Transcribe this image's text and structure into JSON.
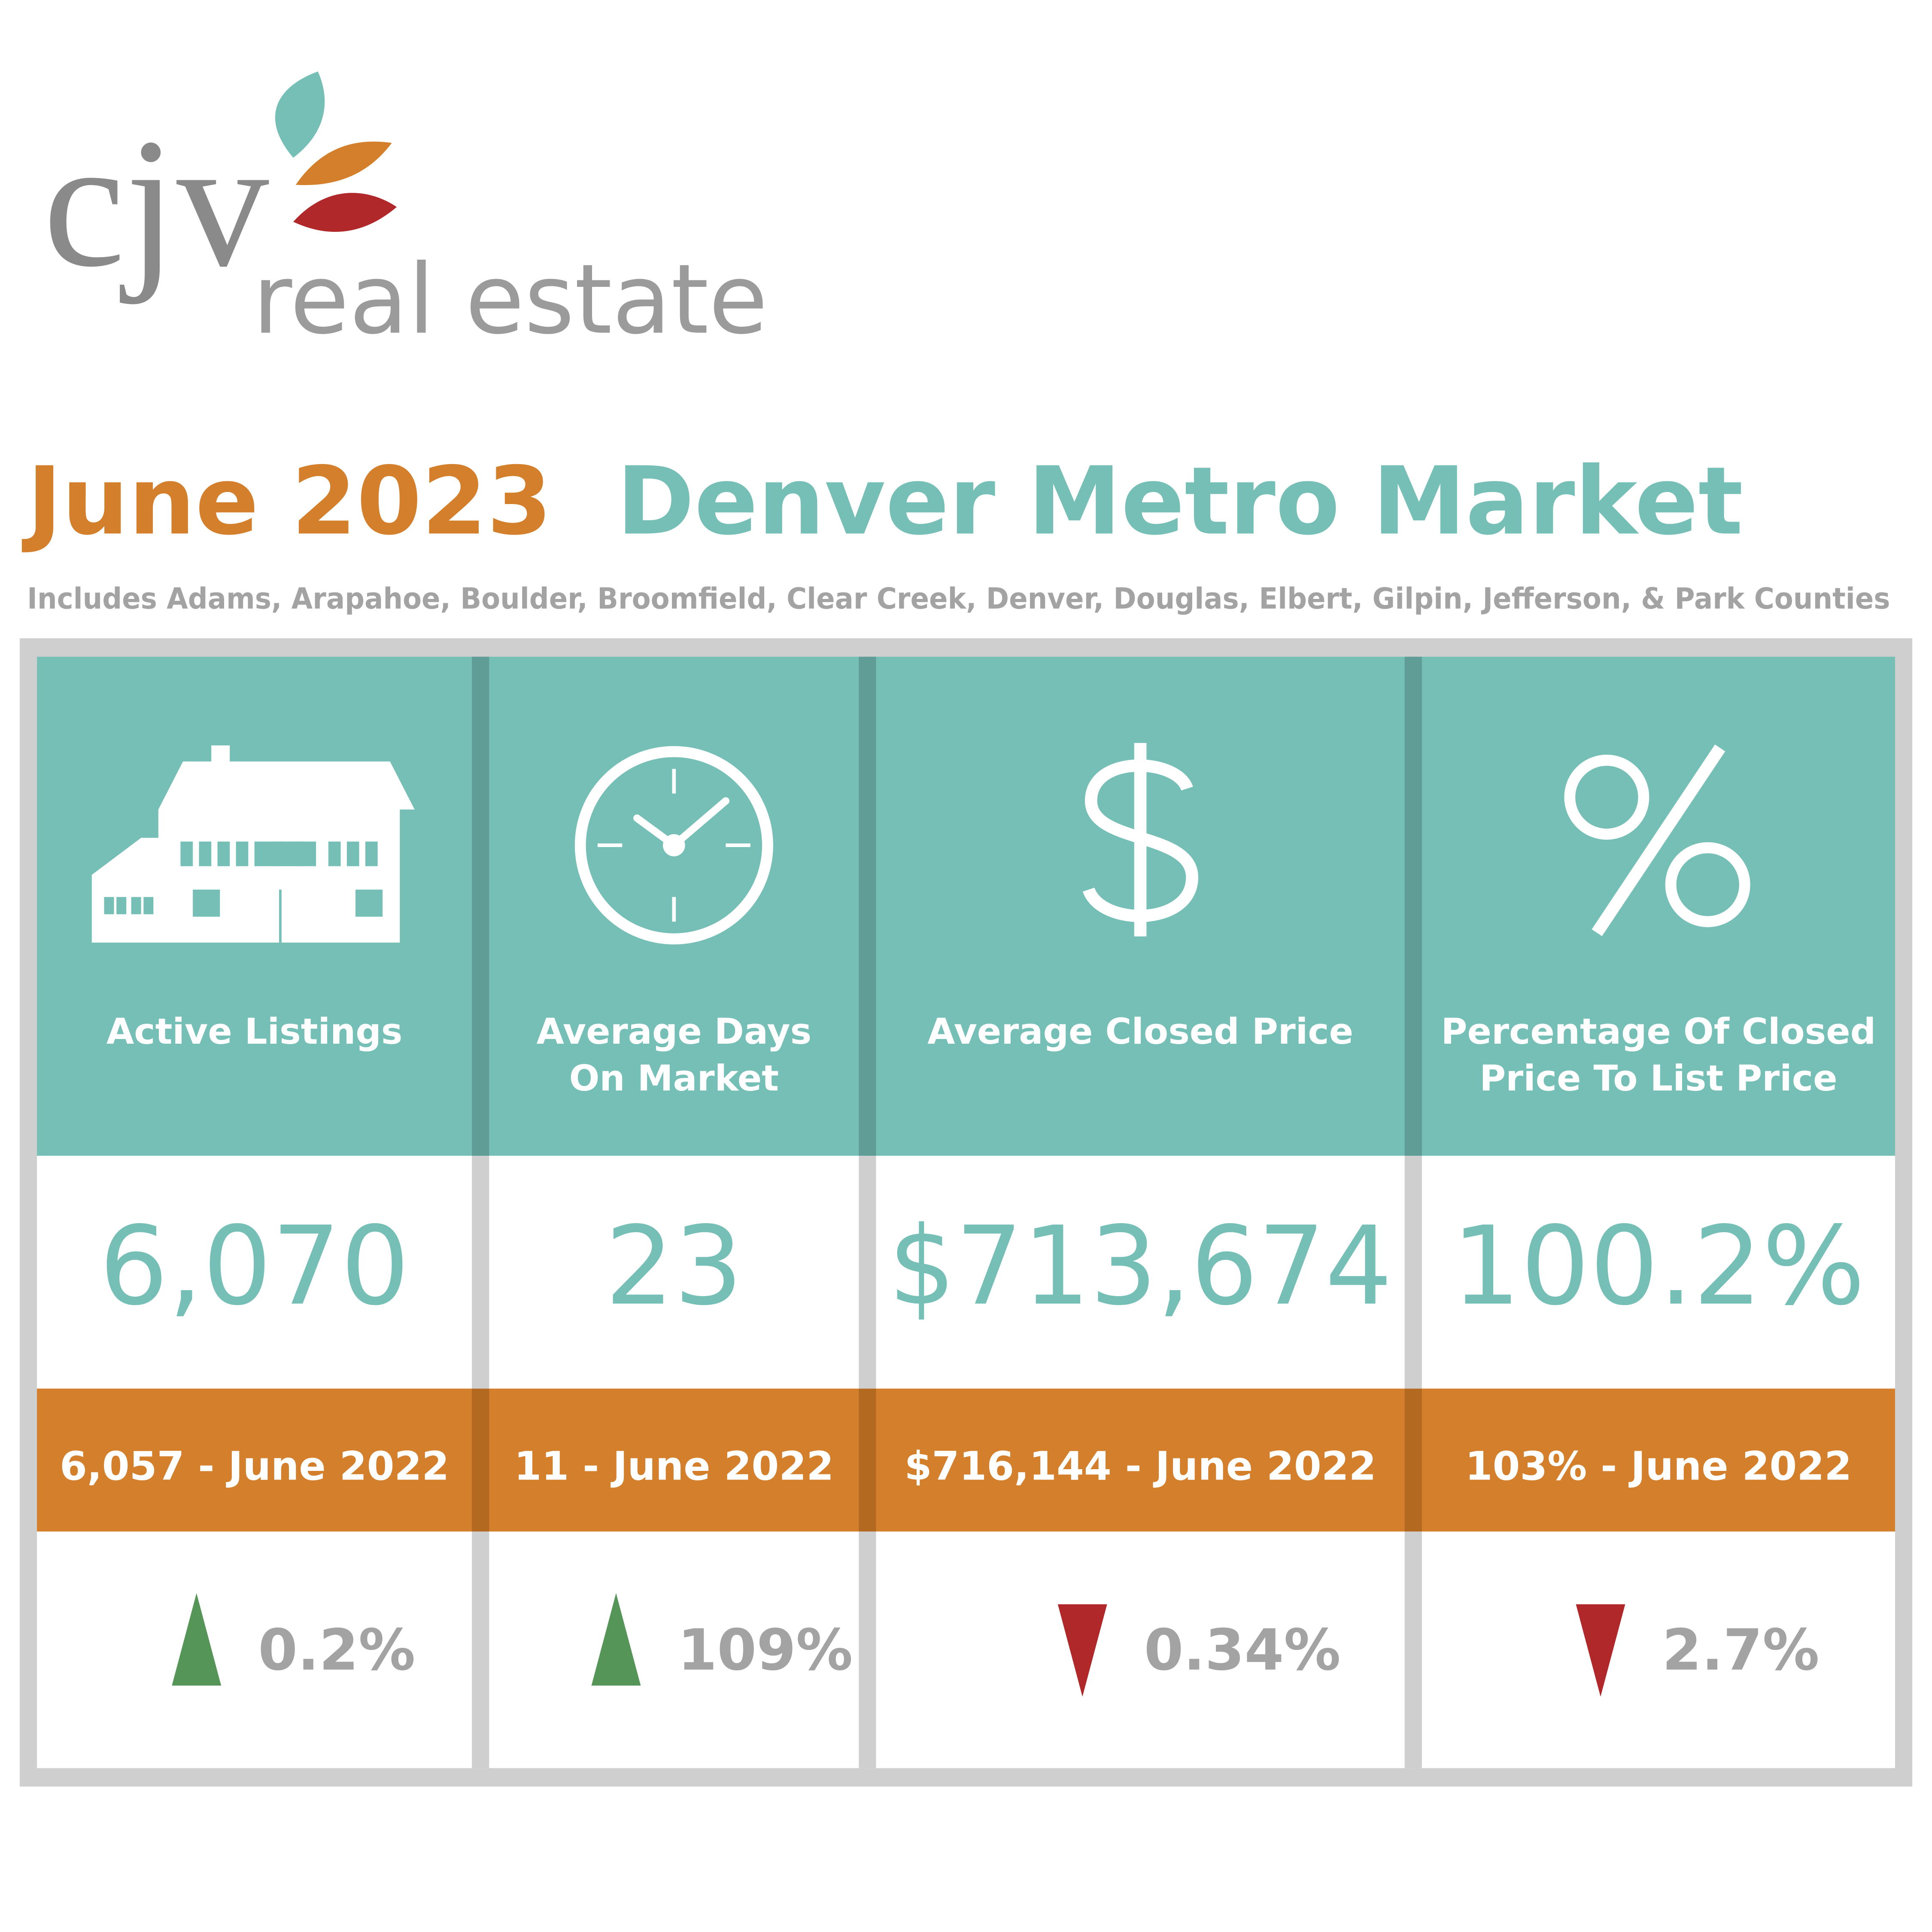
{
  "logo": {
    "mark": "cjv",
    "tagline": "real estate"
  },
  "header": {
    "title_date": "June 2023",
    "title_market": "Denver Metro Market",
    "subtitle": "Includes Adams, Arapahoe, Boulder, Broomfield, Clear Creek, Denver, Douglas, Elbert, Gilpin, Jefferson, & Park Counties"
  },
  "cards": [
    {
      "label": [
        "Active Listings"
      ],
      "value": "6,070",
      "prior": "6,057 - June 2022",
      "change": "0.2%",
      "trend": "up"
    },
    {
      "label": [
        "Average Days",
        "On Market"
      ],
      "value": "23",
      "prior": "11 - June 2022",
      "change": "109%",
      "trend": "up"
    },
    {
      "label": [
        "Average Closed Price"
      ],
      "value": "$713,674",
      "prior": "$716,144 - June 2022",
      "change": "0.34%",
      "trend": "down"
    },
    {
      "label": [
        "Percentage Of Closed",
        "Price To List Price"
      ],
      "value": "100.2%",
      "prior": "103% - June 2022",
      "change": "2.7%",
      "trend": "down"
    }
  ],
  "trend_colors": {
    "up": "#559558",
    "down": "#b0282a"
  }
}
